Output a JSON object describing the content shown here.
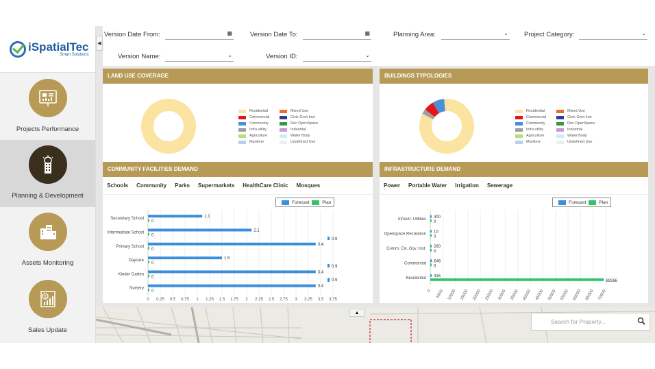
{
  "brand": {
    "name": "iSpatialTec",
    "tagline": "Smart Solutions"
  },
  "sidebar": {
    "items": [
      {
        "label": "Projects Performance",
        "icon": "chart-board-icon",
        "active": false
      },
      {
        "label": "Planning & Development",
        "icon": "building-plan-icon",
        "active": true
      },
      {
        "label": "Assets Monitoring",
        "icon": "buildings-icon",
        "active": false
      },
      {
        "label": "Sales Update",
        "icon": "money-chart-icon",
        "active": false
      }
    ]
  },
  "filters": {
    "version_date_from": "Version Date From:",
    "version_date_to": "Version Date To:",
    "planning_area": "Planning Area:",
    "project_category": "Project Category:",
    "version_name": "Version Name:",
    "version_id": "Version ID:"
  },
  "legend_items": [
    {
      "label": "Residential",
      "color": "#fbe3a1"
    },
    {
      "label": "Mixed Use",
      "color": "#e8702a"
    },
    {
      "label": "Commercial",
      "color": "#e5131b"
    },
    {
      "label": "Civic Govt Inst",
      "color": "#2b3f8f"
    },
    {
      "label": "Community",
      "color": "#4a90d9"
    },
    {
      "label": "Rec OpenSpace",
      "color": "#3a9a3a"
    },
    {
      "label": "Infra utility",
      "color": "#9e9e9e"
    },
    {
      "label": "Industrial",
      "color": "#c896dc"
    },
    {
      "label": "Agriculture",
      "color": "#b5e07a"
    },
    {
      "label": "Water Body",
      "color": "#c9eef4"
    },
    {
      "label": "Maritime",
      "color": "#b7d2ea"
    },
    {
      "label": "Undefined Use",
      "color": "#eeeeee"
    }
  ],
  "panels": {
    "land_use": {
      "title": "LAND USE COVERAGE"
    },
    "buildings": {
      "title": "BUILDINGS TYPOLOGIES"
    },
    "community": {
      "title": "COMMUNITY FACILITIES DEMAND",
      "tabs": [
        "Schools",
        "Community",
        "Parks",
        "Supermarkets",
        "HealthCare Clinic",
        "Mosques"
      ]
    },
    "infrastructure": {
      "title": "INFRASTRUCTURE DEMAND",
      "tabs": [
        "Power",
        "Portable Water",
        "Irrigation",
        "Sewerage"
      ]
    }
  },
  "series_labels": {
    "forecast": "Forecast",
    "plan": "Plan"
  },
  "colors": {
    "gold": "#b89a57",
    "forecast": "#3b8fd9",
    "plan": "#34c26b",
    "dark": "#3a2e1c"
  },
  "search": {
    "placeholder": "Search for Property..."
  },
  "chart_data": [
    {
      "type": "pie",
      "title": "LAND USE COVERAGE",
      "labels": [
        "Residential"
      ],
      "values": [
        100
      ],
      "colors": [
        "#fbe3a1"
      ]
    },
    {
      "type": "pie",
      "title": "BUILDINGS TYPOLOGIES",
      "labels": [
        "Residential",
        "Commercial",
        "Community",
        "Infra utility"
      ],
      "values": [
        84,
        6,
        7,
        3
      ],
      "colors": [
        "#fbe3a1",
        "#e5131b",
        "#4a90d9",
        "#9e9e9e"
      ]
    },
    {
      "type": "bar",
      "title": "COMMUNITY FACILITIES DEMAND",
      "categories": [
        "Secondary School",
        "Intermediate School",
        "Primary School",
        "Daycare",
        "Kinder Garten",
        "Nursery"
      ],
      "series": [
        {
          "name": "Forecast",
          "values": [
            1.1,
            2.1,
            3.4,
            1.5,
            3.4,
            3.4
          ]
        },
        {
          "name": "Plan",
          "values": [
            0,
            0,
            0,
            0,
            0,
            0
          ]
        }
      ],
      "extra_labels": [
        "0.9",
        "0.9",
        "0.9"
      ],
      "xticks": [
        "0",
        "0.25",
        "0.5",
        "0.75",
        "1",
        "1.25",
        "1.5",
        "1.75",
        "2",
        "2.25",
        "2.5",
        "2.75",
        "3",
        "3.25",
        "3.5",
        "3.75"
      ],
      "xlim": [
        0,
        3.75
      ]
    },
    {
      "type": "bar",
      "title": "INFRASTRUCTURE DEMAND",
      "categories": [
        "Infrastr. Utilities",
        "Openspace Recreation",
        "Comm. Civ. Gov. Inst.",
        "Commercial",
        "Residential"
      ],
      "series": [
        {
          "name": "Forecast",
          "values": [
            400,
            10,
            260,
            646,
            416
          ]
        },
        {
          "name": "Plan",
          "values": [
            0,
            0,
            0,
            0,
            69266
          ]
        }
      ],
      "xticks": [
        "0",
        "5000",
        "10000",
        "15000",
        "20000",
        "25000",
        "30000",
        "35000",
        "40000",
        "45000",
        "50000",
        "55000",
        "60000",
        "65000",
        "70000"
      ],
      "xlim": [
        0,
        70000
      ]
    }
  ]
}
